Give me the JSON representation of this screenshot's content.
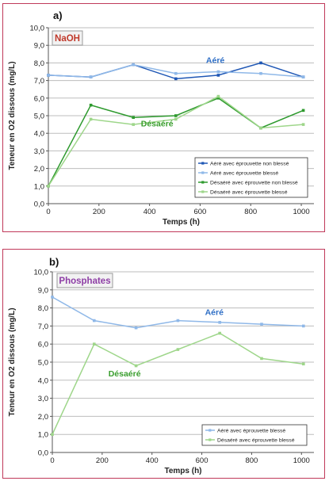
{
  "chart_data": [
    {
      "type": "line",
      "panel_label": "a)",
      "box_label": "NaOH",
      "box_color": "#c0392b",
      "ylabel": "Teneur en O2 dissous  (mg/L)",
      "xlabel": "Temps (h)",
      "xlim": [
        0,
        1050
      ],
      "ylim": [
        0,
        10
      ],
      "xticks": [
        "0",
        "200",
        "400",
        "600",
        "800",
        "1000"
      ],
      "yticks": [
        "0,0",
        "1,0",
        "2,0",
        "3,0",
        "4,0",
        "5,0",
        "6,0",
        "7,0",
        "8,0",
        "9,0",
        "10,0"
      ],
      "annotations": [
        {
          "text": "Aéré",
          "x": 660,
          "y": 8.0,
          "color": "#2f6fc6"
        },
        {
          "text": "Désaéré",
          "x": 430,
          "y": 4.4,
          "color": "#3a9e2e"
        }
      ],
      "legend_position": "bottom-right",
      "series": [
        {
          "name": "Aéré avec éprouvette non blessé",
          "color": "#1f57b5",
          "x": [
            0,
            168,
            336,
            504,
            672,
            840,
            1008
          ],
          "y": [
            7.3,
            7.2,
            7.9,
            7.1,
            7.3,
            8.0,
            7.2
          ]
        },
        {
          "name": "Aéré avec éprouvette blessé",
          "color": "#8fb8e8",
          "x": [
            0,
            168,
            336,
            504,
            672,
            840,
            1008
          ],
          "y": [
            7.3,
            7.2,
            7.9,
            7.4,
            7.5,
            7.4,
            7.2
          ]
        },
        {
          "name": "Désaéré avec éprouvette non blessé",
          "color": "#2e9a2e",
          "x": [
            0,
            168,
            336,
            504,
            672,
            840,
            1008
          ],
          "y": [
            1.0,
            5.6,
            4.9,
            5.0,
            6.0,
            4.3,
            5.3
          ]
        },
        {
          "name": "Désaéré avec éprouvette blessé",
          "color": "#9ed68a",
          "x": [
            0,
            168,
            336,
            504,
            672,
            840,
            1008
          ],
          "y": [
            1.0,
            4.8,
            4.5,
            4.8,
            6.1,
            4.3,
            4.5
          ]
        }
      ]
    },
    {
      "type": "line",
      "panel_label": "b)",
      "box_label": "Phosphates",
      "box_color": "#8e3ea6",
      "ylabel": "Teneur en O2 dissous  (mg/L)",
      "xlabel": "Temps (h)",
      "xlim": [
        0,
        1050
      ],
      "ylim": [
        0,
        10
      ],
      "xticks": [
        "0",
        "200",
        "400",
        "600",
        "800",
        "1000"
      ],
      "yticks": [
        "0,0",
        "1,0",
        "2,0",
        "3,0",
        "4,0",
        "5,0",
        "6,0",
        "7,0",
        "8,0",
        "9,0",
        "10,0"
      ],
      "annotations": [
        {
          "text": "Aéré",
          "x": 650,
          "y": 7.6,
          "color": "#2f6fc6"
        },
        {
          "text": "Désaéré",
          "x": 290,
          "y": 4.2,
          "color": "#3a9e2e"
        }
      ],
      "legend_position": "bottom-right",
      "series": [
        {
          "name": "Aéré avec éprouvette blessé",
          "color": "#8fb8e8",
          "x": [
            0,
            168,
            336,
            504,
            672,
            840,
            1008
          ],
          "y": [
            8.6,
            7.3,
            6.9,
            7.3,
            7.2,
            7.1,
            7.0
          ]
        },
        {
          "name": "Désaéré avec éprouvette blessé",
          "color": "#9ed68a",
          "x": [
            0,
            168,
            336,
            504,
            672,
            840,
            1008
          ],
          "y": [
            1.0,
            6.0,
            4.8,
            5.7,
            6.6,
            5.2,
            4.9
          ]
        }
      ]
    }
  ]
}
